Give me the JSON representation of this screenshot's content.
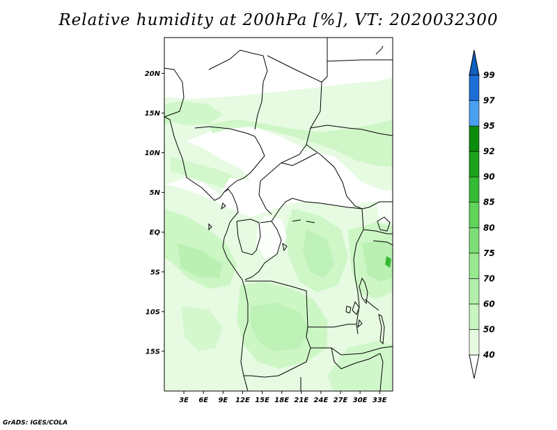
{
  "title": "Relative humidity at 200hPa [%], VT: 2020032300",
  "credit": "GrADS: IGES/COLA",
  "lat_ticks": [
    {
      "label": "20N",
      "value": 20
    },
    {
      "label": "15N",
      "value": 15
    },
    {
      "label": "10N",
      "value": 10
    },
    {
      "label": "5N",
      "value": 5
    },
    {
      "label": "EQ",
      "value": 0
    },
    {
      "label": "5S",
      "value": -5
    },
    {
      "label": "10S",
      "value": -10
    },
    {
      "label": "15S",
      "value": -15
    }
  ],
  "lon_ticks": [
    {
      "label": "3E",
      "value": 3
    },
    {
      "label": "6E",
      "value": 6
    },
    {
      "label": "9E",
      "value": 9
    },
    {
      "label": "12E",
      "value": 12
    },
    {
      "label": "15E",
      "value": 15
    },
    {
      "label": "18E",
      "value": 18
    },
    {
      "label": "21E",
      "value": 21
    },
    {
      "label": "24E",
      "value": 24
    },
    {
      "label": "27E",
      "value": 27
    },
    {
      "label": "30E",
      "value": 30
    },
    {
      "label": "33E",
      "value": 33
    }
  ],
  "extent": {
    "lon": [
      0,
      35
    ],
    "lat": [
      -20,
      24.5
    ]
  },
  "colorbar": [
    {
      "label": "40",
      "color": "#ffffff"
    },
    {
      "label": "50",
      "color": "#e6fbe2"
    },
    {
      "label": "60",
      "color": "#c8f5c0"
    },
    {
      "label": "70",
      "color": "#b2efab"
    },
    {
      "label": "75",
      "color": "#98e890"
    },
    {
      "label": "80",
      "color": "#7ede76"
    },
    {
      "label": "85",
      "color": "#5fd35a"
    },
    {
      "label": "90",
      "color": "#36bb36"
    },
    {
      "label": "92",
      "color": "#1aa31a"
    },
    {
      "label": "95",
      "color": "#0c8c0c"
    },
    {
      "label": "97",
      "color": "#4aa0f0"
    },
    {
      "label": "99",
      "color": "#1e6ed8"
    }
  ],
  "colorbar_top": "#1060c0"
}
